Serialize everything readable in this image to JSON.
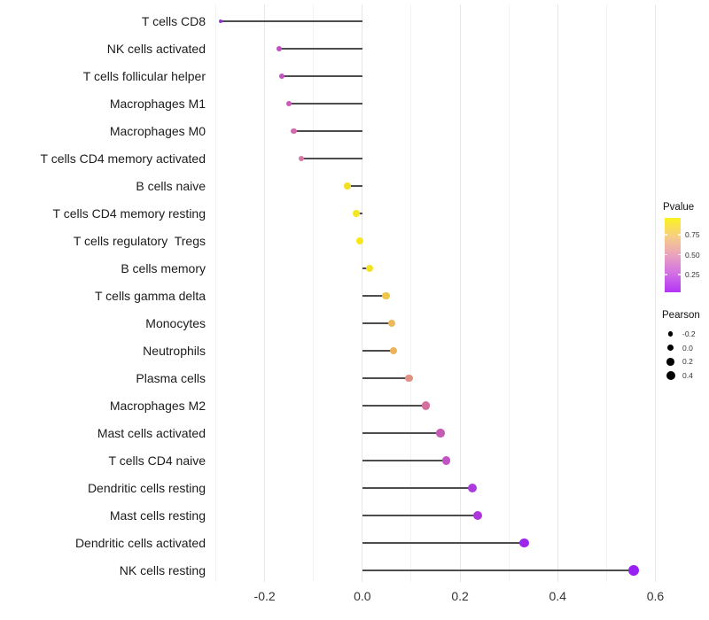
{
  "chart_data": {
    "type": "scatter",
    "subtype": "horizontal-lollipop",
    "title": "",
    "xlabel": "",
    "ylabel": "",
    "xlim": [
      -0.31,
      0.61
    ],
    "x_major_ticks": [
      -0.2,
      0.0,
      0.2,
      0.4,
      0.6
    ],
    "x_major_tick_labels": [
      "-0.2",
      "0.0",
      "0.2",
      "0.4",
      "0.6"
    ],
    "x_minor_ticks": [
      -0.3,
      -0.1,
      0.1,
      0.3,
      0.5
    ],
    "grid": "vertical major and minor gridlines, white background, no axis lines",
    "stem_baseline": 0.0,
    "color_encoding": "Pvalue",
    "size_encoding": "Pearson",
    "points": [
      {
        "label": "T cells CD8",
        "pearson": -0.29,
        "color": "#9136D2"
      },
      {
        "label": "NK cells activated",
        "pearson": -0.17,
        "color": "#C050C4"
      },
      {
        "label": "T cells follicular helper",
        "pearson": -0.165,
        "color": "#C254C1"
      },
      {
        "label": "Macrophages M1",
        "pearson": -0.15,
        "color": "#CA5BB8"
      },
      {
        "label": "Macrophages M0",
        "pearson": -0.14,
        "color": "#D369AE"
      },
      {
        "label": "T cells CD4 memory activated",
        "pearson": -0.125,
        "color": "#D877A6"
      },
      {
        "label": "B cells naive",
        "pearson": -0.03,
        "color": "#F2DF27"
      },
      {
        "label": "T cells CD4 memory resting",
        "pearson": -0.012,
        "color": "#F5E522"
      },
      {
        "label": "T cells regulatory  Tregs",
        "pearson": -0.005,
        "color": "#F6E81E"
      },
      {
        "label": "B cells memory",
        "pearson": 0.015,
        "color": "#F4E324"
      },
      {
        "label": "T cells gamma delta",
        "pearson": 0.048,
        "color": "#EFC54A"
      },
      {
        "label": "Monocytes",
        "pearson": 0.06,
        "color": "#ECB95A"
      },
      {
        "label": "Neutrophils",
        "pearson": 0.064,
        "color": "#EBB45C"
      },
      {
        "label": "Plasma cells",
        "pearson": 0.095,
        "color": "#E29283"
      },
      {
        "label": "Macrophages M2",
        "pearson": 0.13,
        "color": "#D4709E"
      },
      {
        "label": "Mast cells activated",
        "pearson": 0.16,
        "color": "#C65BB4"
      },
      {
        "label": "T cells CD4 naive",
        "pearson": 0.172,
        "color": "#C253C6"
      },
      {
        "label": "Dendritic cells resting",
        "pearson": 0.226,
        "color": "#AC3BDE"
      },
      {
        "label": "Mast cells resting",
        "pearson": 0.236,
        "color": "#AD36DB"
      },
      {
        "label": "Dendritic cells activated",
        "pearson": 0.332,
        "color": "#9B27EA"
      },
      {
        "label": "NK cells resting",
        "pearson": 0.555,
        "color": "#9920F2"
      }
    ],
    "legends": {
      "position": "right",
      "pvalue": {
        "title": "Pvalue",
        "tick_values": [
          0.75,
          0.5,
          0.25
        ],
        "tick_labels": [
          "0.75",
          "0.50",
          "0.25"
        ],
        "range": [
          0.96,
          0.03
        ],
        "gradient_top_to_bottom": [
          "#FBF21F",
          "#F6CE85",
          "#E9A2BE",
          "#D26FE5",
          "#B335F6"
        ]
      },
      "pearson": {
        "title": "Pearson",
        "entries": [
          {
            "label": "-0.2",
            "value": -0.2
          },
          {
            "label": "0.0",
            "value": 0.0
          },
          {
            "label": "0.2",
            "value": 0.2
          },
          {
            "label": "0.4",
            "value": 0.4
          }
        ],
        "dot_color": "#000000"
      }
    },
    "style": {
      "stem_color": "#4d4d4d",
      "grid_major_color": "#e7e7e7",
      "grid_minor_color": "#f3f3f3",
      "text_color": "#1c1c1c",
      "background": "#ffffff"
    }
  }
}
